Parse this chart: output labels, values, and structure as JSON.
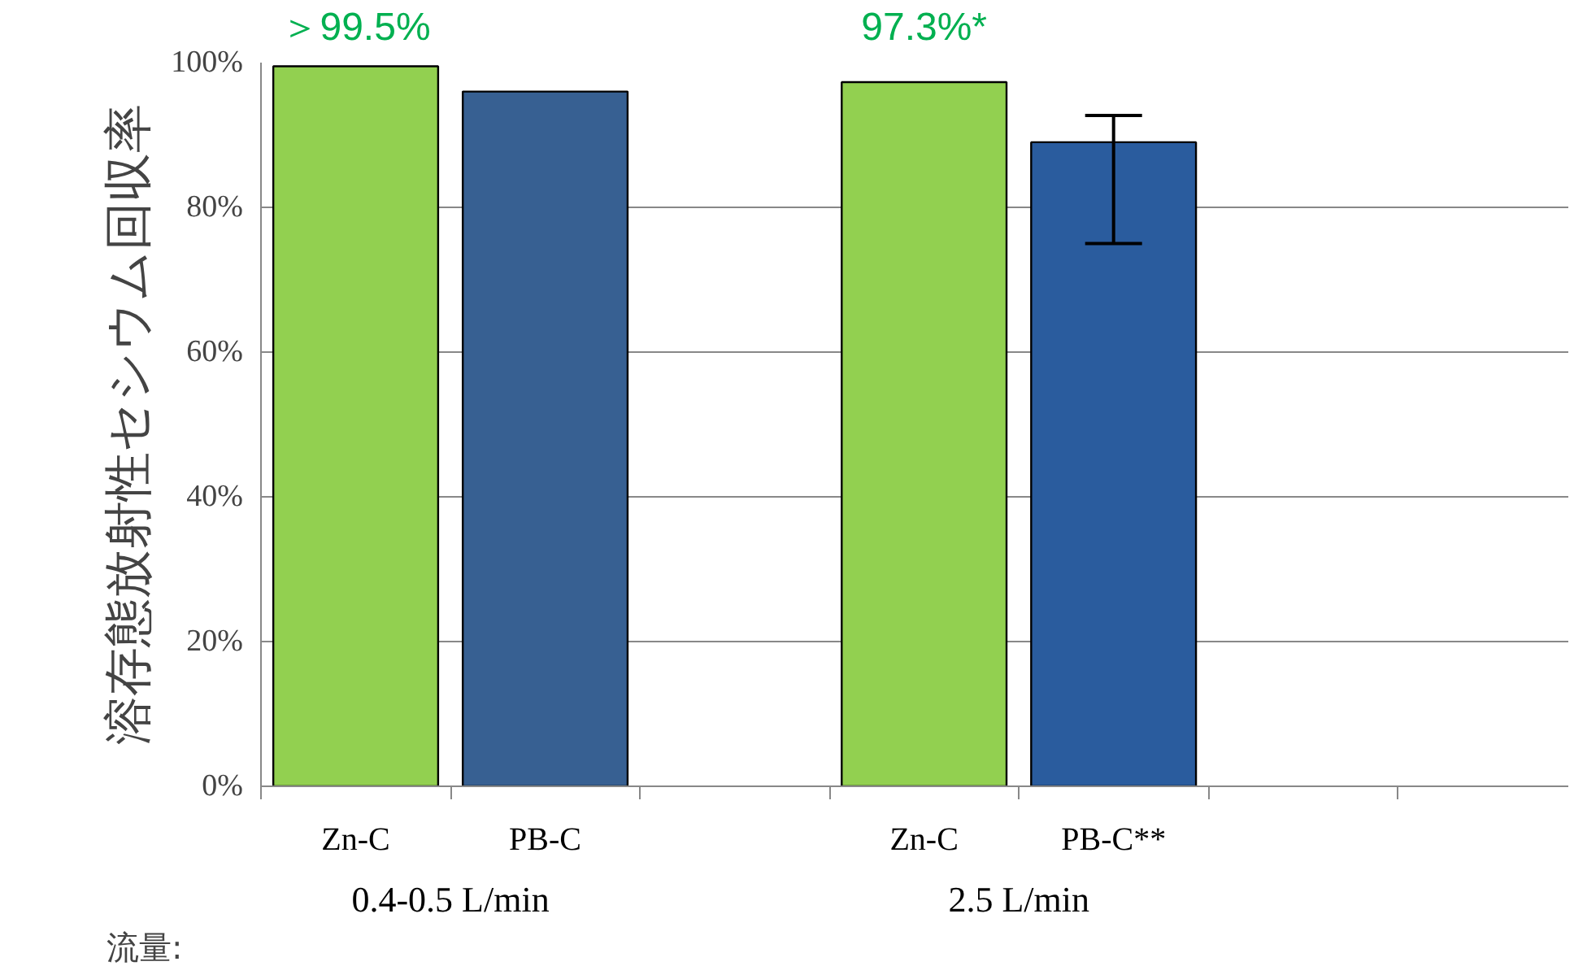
{
  "chart_data": {
    "type": "bar",
    "ylabel": "溶存態放射性セシウム回収率",
    "categories": [
      "Zn-C",
      "PB-C",
      null,
      "Zn-C",
      "PB-C**",
      null,
      null
    ],
    "values": [
      99.5,
      96,
      null,
      97.3,
      89,
      null,
      null
    ],
    "colors": [
      "#92d050",
      "#376092",
      "#92d050",
      "#92d050",
      "#2a5c9e",
      "#92d050",
      "#92d050"
    ],
    "errors": [
      null,
      null,
      null,
      null,
      [
        75,
        92.7
      ],
      null,
      null
    ],
    "value_labels": [
      "＞99.5%",
      null,
      null,
      "97.3%*",
      null,
      null,
      null
    ],
    "ylim": [
      0,
      100
    ],
    "yticks": [
      {
        "value": 0,
        "label": "0%"
      },
      {
        "value": 20,
        "label": "20%"
      },
      {
        "value": 40,
        "label": "40%"
      },
      {
        "value": 60,
        "label": "60%"
      },
      {
        "value": 80,
        "label": "80%"
      },
      {
        "value": 100,
        "label": "100%"
      }
    ],
    "grid": "y",
    "annotations": [
      "流量:",
      "0.4-0.5 L/min",
      "2.5 L/min"
    ]
  }
}
